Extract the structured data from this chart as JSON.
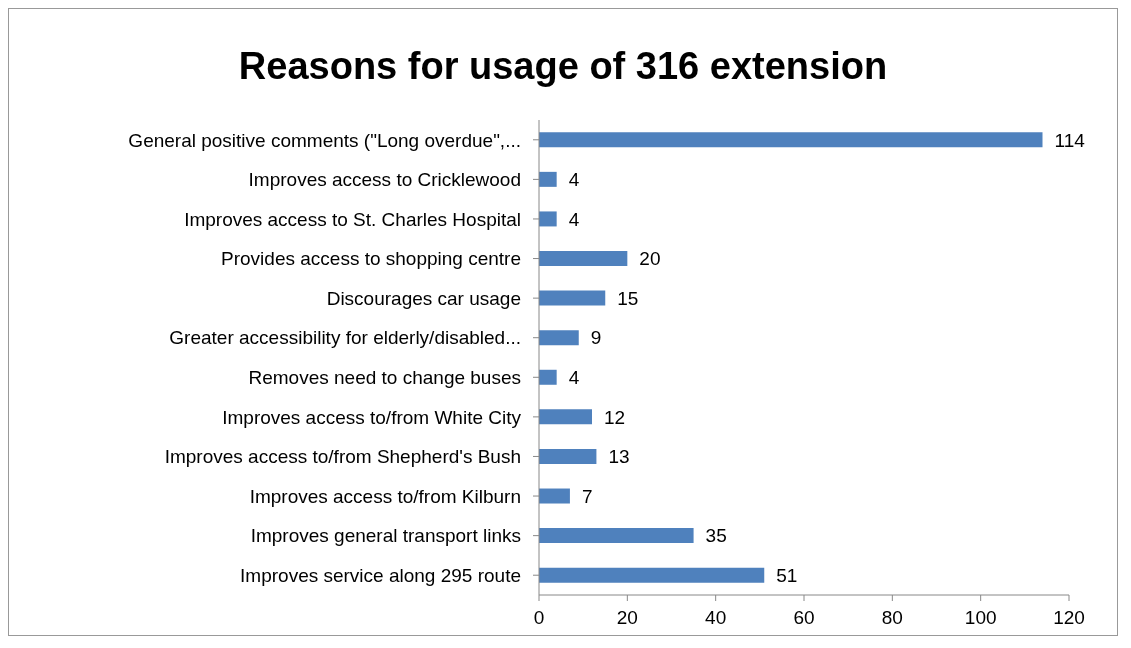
{
  "chart_data": {
    "type": "bar",
    "orientation": "horizontal",
    "title": "Reasons for usage of 316 extension",
    "categories": [
      "General positive comments (\"Long overdue\",...",
      "Improves access to Cricklewood",
      "Improves access to St. Charles Hospital",
      "Provides access to shopping centre",
      "Discourages car usage",
      "Greater accessibility for elderly/disabled...",
      "Removes need to change buses",
      "Improves access to/from White City",
      "Improves access to/from Shepherd's Bush",
      "Improves access to/from Kilburn",
      "Improves general transport links",
      "Improves service along 295 route"
    ],
    "values": [
      114,
      4,
      4,
      20,
      15,
      9,
      4,
      12,
      13,
      7,
      35,
      51
    ],
    "color": "#4f81bd",
    "xlim": [
      0,
      120
    ],
    "xticks": [
      0,
      20,
      40,
      60,
      80,
      100,
      120
    ],
    "grid": false,
    "data_labels": true
  }
}
